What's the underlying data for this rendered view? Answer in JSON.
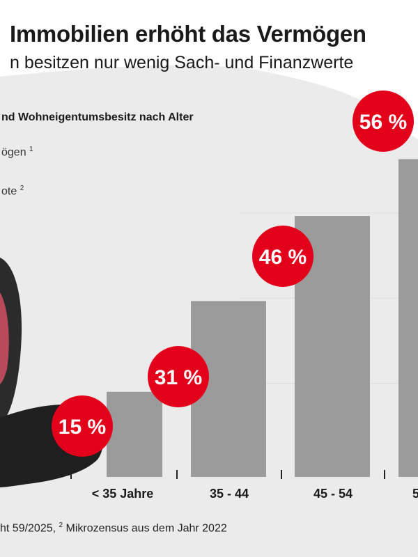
{
  "header": {
    "title": "Immobilien erhöht das Vermögen",
    "subtitle": "n besitzen nur wenig Sach- und Finanzwerte"
  },
  "legend": {
    "heading": "nd Wohneigentumsbesitz nach Alter",
    "item1": "ögen",
    "item1_sup": "1",
    "item2": "ote",
    "item2_sup": "2"
  },
  "footnote": {
    "part1": "ht 59/2025, ",
    "sup": "2",
    "part2": " Mikrozensus aus dem Jahr 2022"
  },
  "colors": {
    "bar": "#9b9b9b",
    "badge": "#e3001b",
    "badge_text": "#ffffff",
    "blob": "#ebebeb",
    "grid": "#dcdcdc"
  },
  "chart_data": {
    "type": "bar",
    "title": "nd Wohneigentumsbesitz nach Alter",
    "categories": [
      "< 35 Jahre",
      "35 - 44",
      "45 - 54",
      "5"
    ],
    "series": [
      {
        "name": "ote",
        "values": [
          15,
          31,
          46,
          56
        ],
        "labels": [
          "15 %",
          "31 %",
          "46 %",
          "56 %"
        ]
      }
    ],
    "ylim": [
      0,
      60
    ],
    "grid": true
  }
}
